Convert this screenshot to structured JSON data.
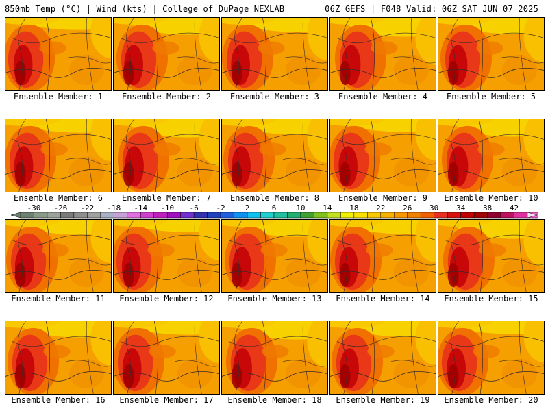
{
  "header": {
    "left": "850mb Temp (°C) | Wind (kts) | College of DuPage NEXLAB",
    "right": "06Z GEFS | F048 Valid: 06Z SAT JUN 07 2025"
  },
  "members": [
    {
      "label": "Ensemble Member: 1"
    },
    {
      "label": "Ensemble Member: 2"
    },
    {
      "label": "Ensemble Member: 3"
    },
    {
      "label": "Ensemble Member: 4"
    },
    {
      "label": "Ensemble Member: 5"
    },
    {
      "label": "Ensemble Member: 6"
    },
    {
      "label": "Ensemble Member: 7"
    },
    {
      "label": "Ensemble Member: 8"
    },
    {
      "label": "Ensemble Member: 9"
    },
    {
      "label": "Ensemble Member: 10"
    },
    {
      "label": "Ensemble Member: 11"
    },
    {
      "label": "Ensemble Member: 12"
    },
    {
      "label": "Ensemble Member: 13"
    },
    {
      "label": "Ensemble Member: 14"
    },
    {
      "label": "Ensemble Member: 15"
    },
    {
      "label": "Ensemble Member: 16"
    },
    {
      "label": "Ensemble Member: 17"
    },
    {
      "label": "Ensemble Member: 18"
    },
    {
      "label": "Ensemble Member: 19"
    },
    {
      "label": "Ensemble Member: 20"
    }
  ],
  "colorbar": {
    "min": -32,
    "max": 44,
    "step": 2,
    "tick_labels": [
      "-30",
      "-26",
      "-22",
      "-18",
      "-14",
      "-10",
      "-6",
      "-2",
      "2",
      "6",
      "10",
      "14",
      "18",
      "22",
      "26",
      "30",
      "34",
      "38",
      "42"
    ],
    "colors": [
      "#6e8070",
      "#8a9a8a",
      "#9aa29a",
      "#7a7a7a",
      "#8e8e8e",
      "#a0a0a0",
      "#a8b0c8",
      "#c8a0d8",
      "#e070e0",
      "#d040d0",
      "#c020c0",
      "#a010c0",
      "#7030d0",
      "#3030b0",
      "#2040c0",
      "#2060e0",
      "#1090f0",
      "#10c0f0",
      "#20d0d0",
      "#20c0a0",
      "#20b070",
      "#40a030",
      "#80c020",
      "#c0e020",
      "#f0f000",
      "#f8e000",
      "#f8c800",
      "#f8b000",
      "#f89800",
      "#f08000",
      "#f06000",
      "#e83020",
      "#d81010",
      "#c00000",
      "#a00000",
      "#900030",
      "#c01060",
      "#e030a0",
      "#f060d0",
      "#f8a0f0",
      "#f8c8f8"
    ]
  }
}
